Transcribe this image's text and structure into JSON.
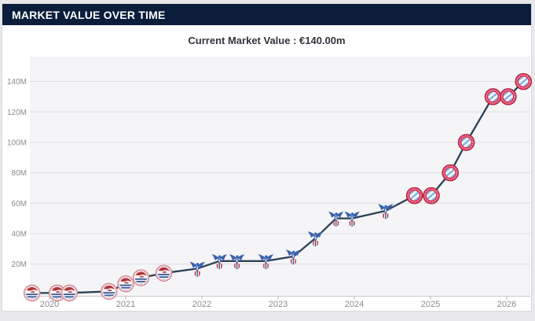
{
  "header": {
    "title": "MARKET VALUE OVER TIME"
  },
  "subtitle": {
    "text": "Current Market Value : €140.00m"
  },
  "colors": {
    "page_bg": "#e9e9ec",
    "card_bg": "#ffffff",
    "card_border": "#d9d9dd",
    "header_bg": "#0a1e3c",
    "title_text": "#ffffff",
    "subtitle_text": "#30343b",
    "plot_bg": "#f5f5f7",
    "grid": "#dedee2",
    "axis_edge": "#c9c9cd",
    "tick_mark": "#b9b9bd",
    "axis_text": "#8b8b90",
    "line": "#2b4156",
    "bayern_red": "#d92b52",
    "palace_blue": "#3a62ad",
    "reading_red": "#b0343c",
    "reading_blue": "#3a5a9b"
  },
  "chart_data": {
    "type": "line",
    "title": "Market Value Over Time",
    "unit": "€m",
    "grid": "horizontal",
    "legend": "none",
    "xlim": [
      2019.6,
      2026.35
    ],
    "ylim": [
      0,
      157
    ],
    "x_ticks": [
      "2020",
      "2021",
      "2022",
      "2023",
      "2024",
      "2025",
      "2026"
    ],
    "y_ticks": [
      "20M",
      "40M",
      "60M",
      "80M",
      "100M",
      "120M",
      "140M"
    ],
    "y_tick_values": [
      20,
      40,
      60,
      80,
      100,
      120,
      140
    ],
    "point_icons": [
      "reading-crest",
      "crystal-palace-crest",
      "bayern-munich-crest"
    ],
    "series": [
      {
        "name": "Market value",
        "points": [
          {
            "year": 2019.77,
            "value": 1,
            "club": "reading"
          },
          {
            "year": 2020.1,
            "value": 1,
            "club": "reading"
          },
          {
            "year": 2020.26,
            "value": 1,
            "club": "reading"
          },
          {
            "year": 2020.78,
            "value": 2,
            "club": "reading"
          },
          {
            "year": 2021.0,
            "value": 7,
            "club": "reading"
          },
          {
            "year": 2021.2,
            "value": 11,
            "club": "reading"
          },
          {
            "year": 2021.5,
            "value": 14,
            "club": "reading"
          },
          {
            "year": 2021.94,
            "value": 17,
            "club": "crystal-palace"
          },
          {
            "year": 2022.23,
            "value": 22,
            "club": "crystal-palace"
          },
          {
            "year": 2022.46,
            "value": 22,
            "club": "crystal-palace"
          },
          {
            "year": 2022.84,
            "value": 22,
            "club": "crystal-palace"
          },
          {
            "year": 2023.2,
            "value": 25,
            "club": "crystal-palace"
          },
          {
            "year": 2023.49,
            "value": 37,
            "club": "crystal-palace"
          },
          {
            "year": 2023.76,
            "value": 50,
            "club": "crystal-palace"
          },
          {
            "year": 2023.97,
            "value": 50,
            "club": "crystal-palace"
          },
          {
            "year": 2024.41,
            "value": 55,
            "club": "crystal-palace"
          },
          {
            "year": 2024.79,
            "value": 65,
            "club": "bayern-munich"
          },
          {
            "year": 2025.01,
            "value": 65,
            "club": "bayern-munich"
          },
          {
            "year": 2025.26,
            "value": 80,
            "club": "bayern-munich"
          },
          {
            "year": 2025.47,
            "value": 100,
            "club": "bayern-munich"
          },
          {
            "year": 2025.82,
            "value": 130,
            "club": "bayern-munich"
          },
          {
            "year": 2026.02,
            "value": 130,
            "club": "bayern-munich"
          },
          {
            "year": 2026.22,
            "value": 140,
            "club": "bayern-munich"
          }
        ]
      }
    ]
  }
}
